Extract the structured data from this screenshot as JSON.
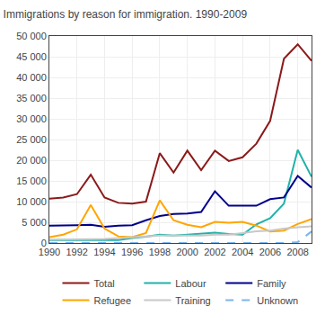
{
  "chart_data": {
    "type": "line",
    "title": "Immigrations by reason for immigration. 1990-2009",
    "x": [
      1990,
      1991,
      1992,
      1993,
      1994,
      1995,
      1996,
      1997,
      1998,
      1999,
      2000,
      2001,
      2002,
      2003,
      2004,
      2005,
      2006,
      2007,
      2008,
      2009
    ],
    "series": [
      {
        "name": "Total",
        "color": "#8b1a1a",
        "line_style": "solid",
        "values": [
          10700,
          11000,
          11800,
          16500,
          11000,
          9700,
          9500,
          10000,
          21700,
          17000,
          22300,
          17600,
          22300,
          19800,
          20700,
          24000,
          29500,
          44500,
          48000,
          44000
        ]
      },
      {
        "name": "Labour",
        "color": "#20b2aa",
        "line_style": "solid",
        "values": [
          700,
          700,
          700,
          700,
          700,
          700,
          1200,
          1500,
          2000,
          1800,
          2000,
          2200,
          2500,
          2200,
          2000,
          4500,
          6000,
          9500,
          22500,
          16000
        ]
      },
      {
        "name": "Family",
        "color": "#00008b",
        "line_style": "solid",
        "values": [
          4200,
          4200,
          4300,
          4400,
          3900,
          4200,
          4300,
          5500,
          6500,
          7000,
          7100,
          7500,
          12500,
          9000,
          9000,
          9000,
          10600,
          11000,
          16200,
          13400
        ]
      },
      {
        "name": "Refugee",
        "color": "#ffa500",
        "line_style": "solid",
        "values": [
          1400,
          2000,
          3300,
          9200,
          3500,
          1600,
          1400,
          2400,
          10300,
          5500,
          4400,
          3800,
          5100,
          4900,
          5100,
          4200,
          2800,
          3000,
          4600,
          5800
        ]
      },
      {
        "name": "Training",
        "color": "#c8c8c8",
        "line_style": "solid",
        "values": [
          800,
          800,
          900,
          900,
          1000,
          1200,
          1400,
          1600,
          1800,
          1800,
          1800,
          1800,
          2000,
          2000,
          2400,
          2800,
          3000,
          3500,
          3800,
          4000
        ]
      },
      {
        "name": "Unknown",
        "color": "#7eb4ea",
        "line_style": "dashed",
        "values": [
          0,
          0,
          0,
          0,
          0,
          0,
          0,
          0,
          0,
          0,
          0,
          0,
          0,
          0,
          0,
          0,
          0,
          0,
          200,
          2800
        ]
      }
    ],
    "xlim": [
      1990,
      2009
    ],
    "xticks": [
      1990,
      1992,
      1994,
      1996,
      1998,
      2000,
      2002,
      2004,
      2006,
      2008
    ],
    "ylim": [
      0,
      50000
    ],
    "yticks": [
      0,
      {
        "value": 5000,
        "label": "5 000"
      },
      {
        "value": 10000,
        "label": "10 000"
      },
      {
        "value": 15000,
        "label": "15 000"
      },
      {
        "value": 20000,
        "label": "20 000"
      },
      {
        "value": 25000,
        "label": "25 000"
      },
      {
        "value": 30000,
        "label": "30 000"
      },
      {
        "value": 35000,
        "label": "35 000"
      },
      {
        "value": 40000,
        "label": "40 000"
      },
      {
        "value": 45000,
        "label": "45 000"
      },
      {
        "value": 50000,
        "label": "50 000"
      }
    ],
    "grid": true,
    "legend": "bottom"
  }
}
